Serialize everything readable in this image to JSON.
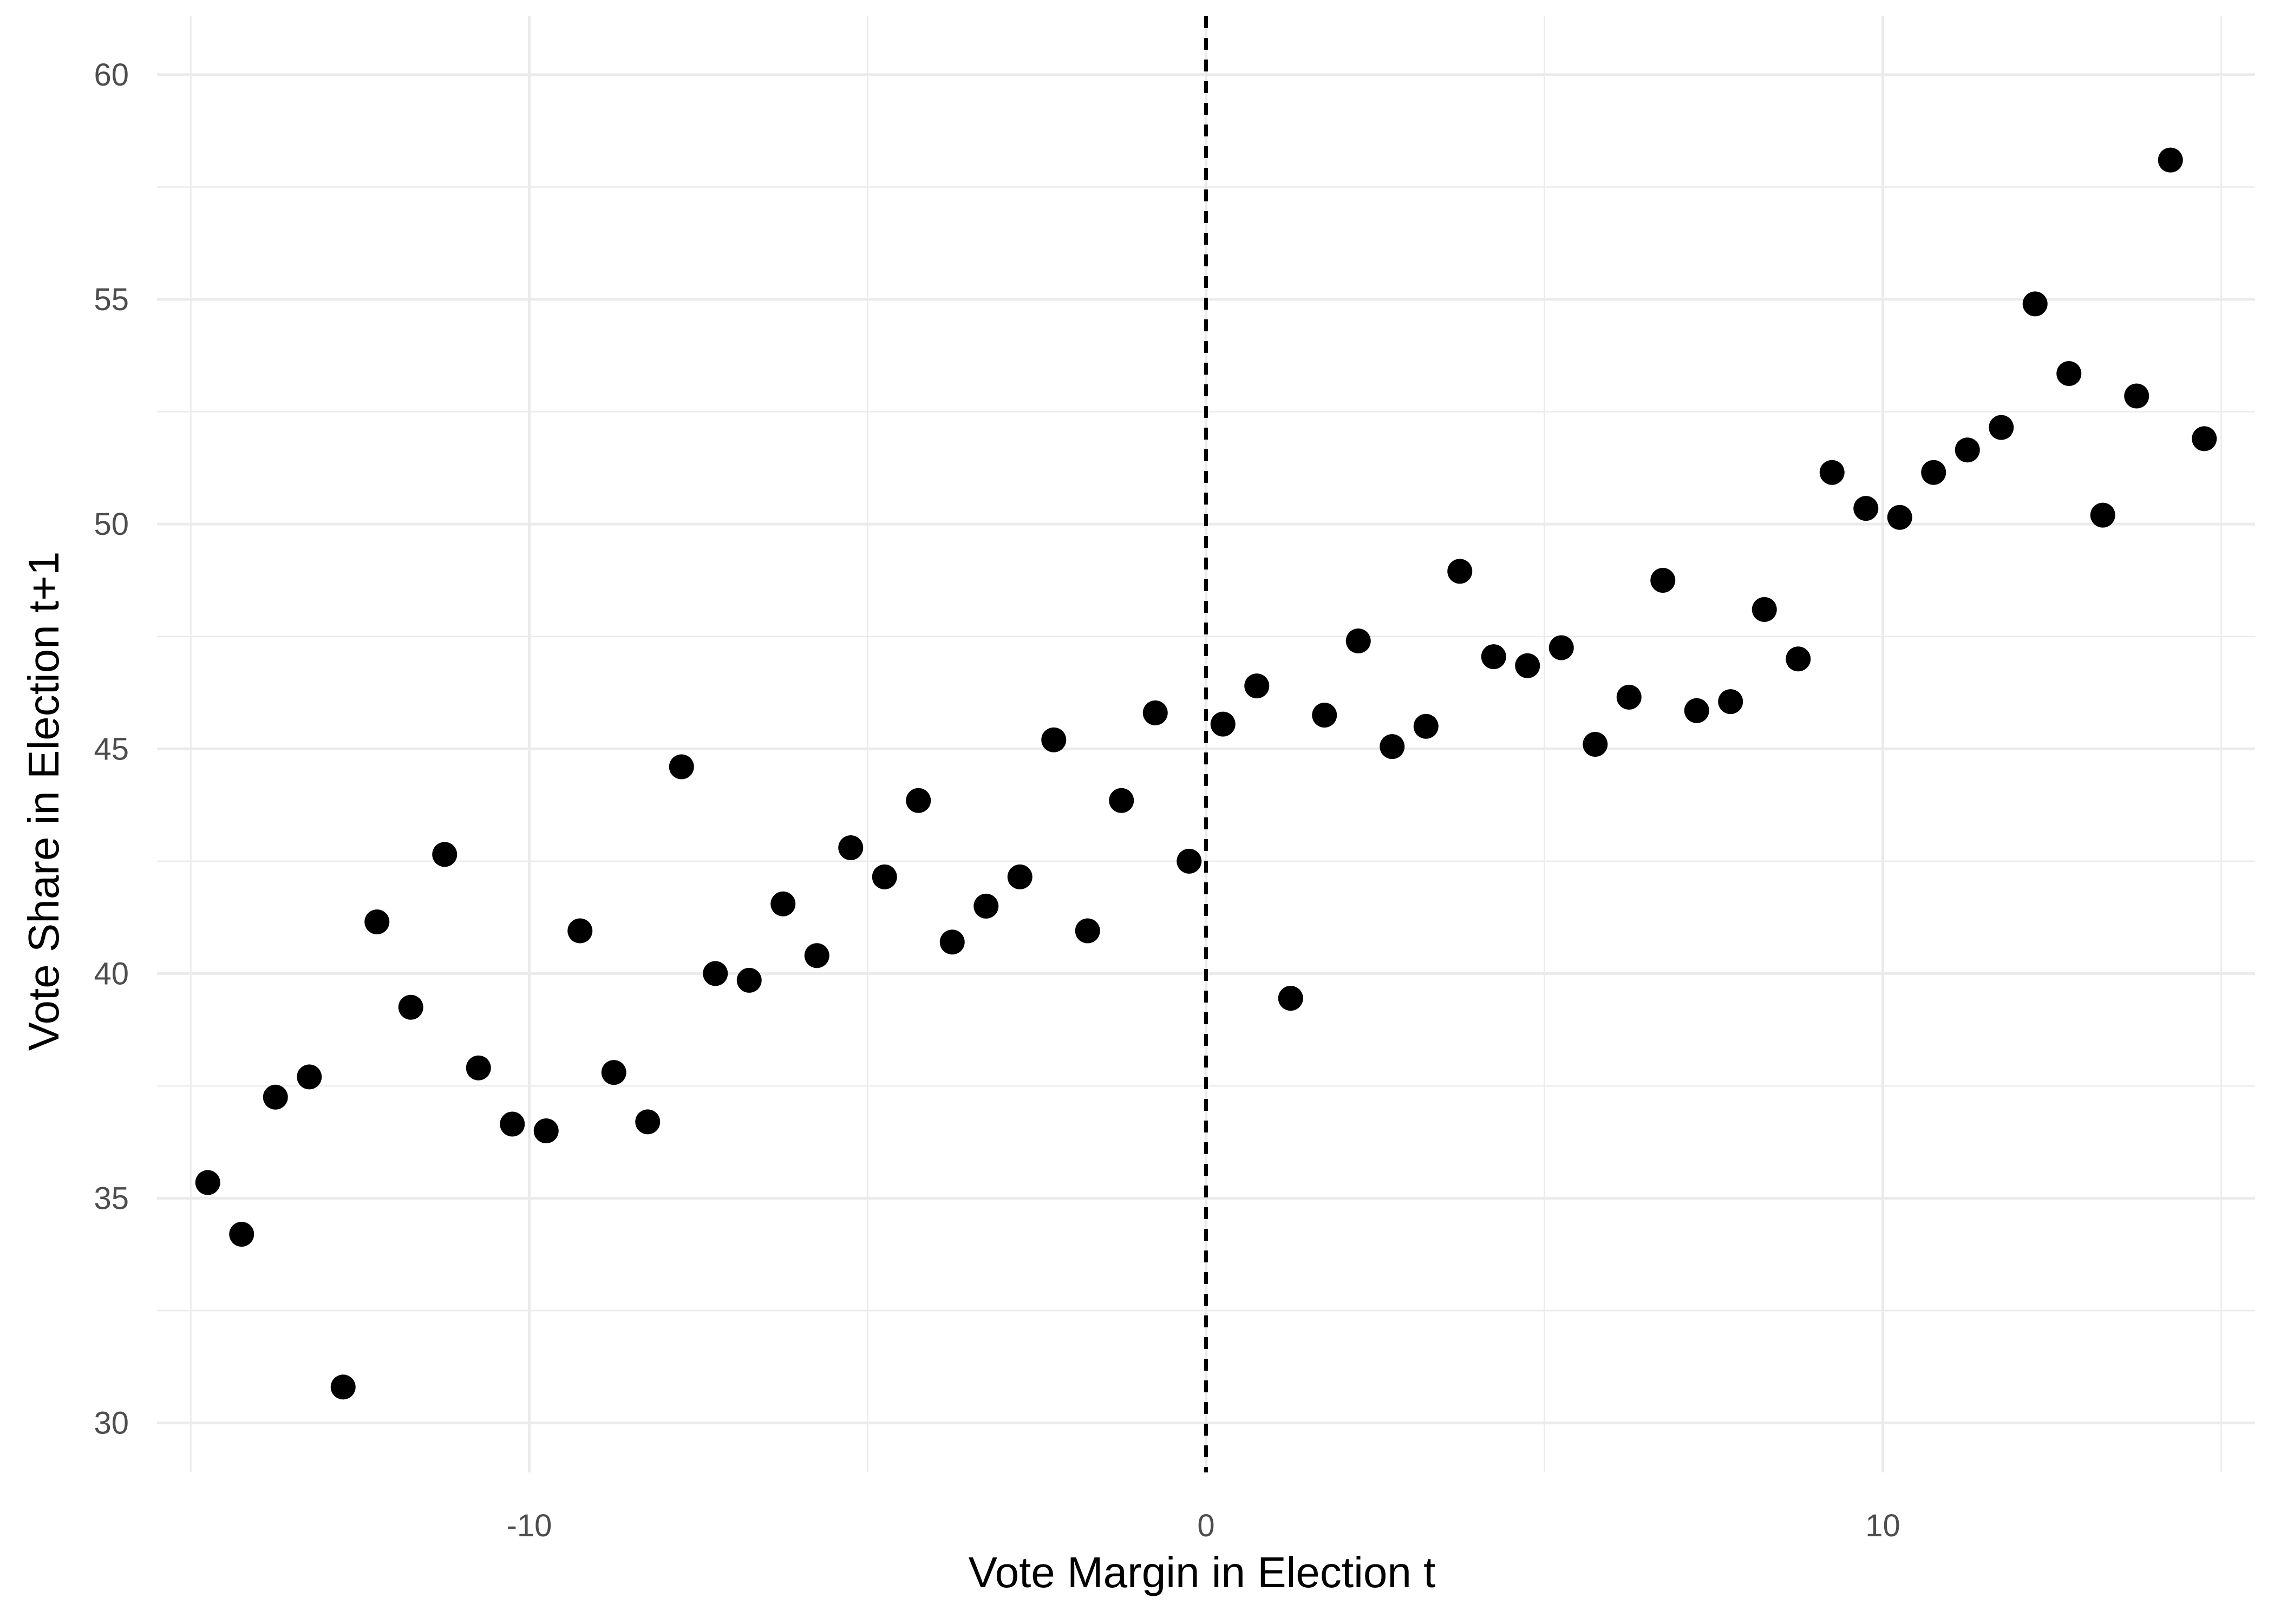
{
  "chart_data": {
    "type": "scatter",
    "title": "",
    "xlabel": "Vote Margin in Election t",
    "ylabel": "Vote Share in Election t+1",
    "xlim": [
      -15.5,
      15.5
    ],
    "ylim": [
      28.9,
      61.3
    ],
    "x_ticks": [
      -10,
      0,
      10
    ],
    "x_minor_ticks": [
      -15,
      -5,
      5,
      15
    ],
    "y_ticks": [
      30,
      35,
      40,
      45,
      50,
      55,
      60
    ],
    "y_minor_ticks": [
      32.5,
      37.5,
      42.5,
      47.5,
      52.5,
      57.5
    ],
    "grid": true,
    "reference_line": {
      "orientation": "vertical",
      "x": 0,
      "style": "dashed",
      "color": "#000000"
    },
    "point_color": "#000000",
    "points": [
      {
        "x": -14.75,
        "y": 35.35
      },
      {
        "x": -14.25,
        "y": 34.2
      },
      {
        "x": -13.75,
        "y": 37.25
      },
      {
        "x": -13.25,
        "y": 37.7
      },
      {
        "x": -12.75,
        "y": 30.8
      },
      {
        "x": -12.25,
        "y": 41.15
      },
      {
        "x": -11.75,
        "y": 39.25
      },
      {
        "x": -11.25,
        "y": 42.65
      },
      {
        "x": -10.75,
        "y": 37.9
      },
      {
        "x": -10.25,
        "y": 36.65
      },
      {
        "x": -9.75,
        "y": 36.5
      },
      {
        "x": -9.25,
        "y": 40.95
      },
      {
        "x": -8.75,
        "y": 37.8
      },
      {
        "x": -8.25,
        "y": 36.7
      },
      {
        "x": -7.75,
        "y": 44.6
      },
      {
        "x": -7.25,
        "y": 40.0
      },
      {
        "x": -6.75,
        "y": 39.85
      },
      {
        "x": -6.25,
        "y": 41.55
      },
      {
        "x": -5.75,
        "y": 40.4
      },
      {
        "x": -5.25,
        "y": 42.8
      },
      {
        "x": -4.75,
        "y": 42.15
      },
      {
        "x": -4.25,
        "y": 43.85
      },
      {
        "x": -3.75,
        "y": 40.7
      },
      {
        "x": -3.25,
        "y": 41.5
      },
      {
        "x": -2.75,
        "y": 42.15
      },
      {
        "x": -2.25,
        "y": 45.2
      },
      {
        "x": -1.75,
        "y": 40.95
      },
      {
        "x": -1.25,
        "y": 43.85
      },
      {
        "x": -0.75,
        "y": 45.8
      },
      {
        "x": -0.25,
        "y": 42.5
      },
      {
        "x": 0.25,
        "y": 45.55
      },
      {
        "x": 0.75,
        "y": 46.4
      },
      {
        "x": 1.25,
        "y": 39.45
      },
      {
        "x": 1.75,
        "y": 45.75
      },
      {
        "x": 2.25,
        "y": 47.4
      },
      {
        "x": 2.75,
        "y": 45.05
      },
      {
        "x": 3.25,
        "y": 45.5
      },
      {
        "x": 3.75,
        "y": 48.95
      },
      {
        "x": 4.25,
        "y": 47.05
      },
      {
        "x": 4.75,
        "y": 46.85
      },
      {
        "x": 5.25,
        "y": 47.25
      },
      {
        "x": 5.75,
        "y": 45.1
      },
      {
        "x": 6.25,
        "y": 46.15
      },
      {
        "x": 6.75,
        "y": 48.75
      },
      {
        "x": 7.25,
        "y": 45.85
      },
      {
        "x": 7.75,
        "y": 46.05
      },
      {
        "x": 8.25,
        "y": 48.1
      },
      {
        "x": 8.75,
        "y": 47.0
      },
      {
        "x": 9.25,
        "y": 51.15
      },
      {
        "x": 9.75,
        "y": 50.35
      },
      {
        "x": 10.25,
        "y": 50.15
      },
      {
        "x": 10.75,
        "y": 51.15
      },
      {
        "x": 11.25,
        "y": 51.65
      },
      {
        "x": 11.75,
        "y": 52.15
      },
      {
        "x": 12.25,
        "y": 54.9
      },
      {
        "x": 12.75,
        "y": 53.35
      },
      {
        "x": 13.25,
        "y": 50.2
      },
      {
        "x": 13.75,
        "y": 52.85
      },
      {
        "x": 14.25,
        "y": 58.1
      },
      {
        "x": 14.75,
        "y": 51.9
      }
    ]
  }
}
